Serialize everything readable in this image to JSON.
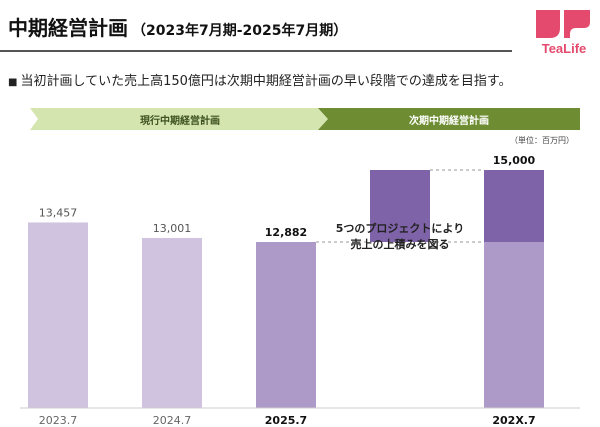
{
  "header": {
    "title": "中期経営計画",
    "subtitle": "（2023年7月期-2025年7月期）",
    "logo_text": "TeaLife"
  },
  "bullet": {
    "mark": "■",
    "text": "当初計画していた売上高150億円は次期中期経営計画の早い段階での達成を目指す。"
  },
  "phases": {
    "current": "現行中期経営計画",
    "next": "次期中期経営計画"
  },
  "colors": {
    "bar_light": "#cfc3e0",
    "bar_mid": "#ae9ac9",
    "bar_dark": "#7f63a8",
    "phase_current": "#d5e5b0",
    "phase_next": "#6e8d33",
    "logo": "#e34a6d"
  },
  "chart_data": {
    "type": "bar",
    "unit_label": "（単位：百万円）",
    "categories": [
      "2023.7",
      "2024.7",
      "2025.7",
      "202X.7"
    ],
    "values": [
      13457,
      13001,
      12882,
      15000
    ],
    "value_labels": [
      "13,457",
      "13,001",
      "12,882",
      "15,000"
    ],
    "increment": {
      "from": 12882,
      "to": 15000
    },
    "annotation": [
      "5つのプロジェクトにより",
      "売上の上積みを図る"
    ],
    "bold_categories": [
      "2025.7",
      "202X.7"
    ]
  }
}
